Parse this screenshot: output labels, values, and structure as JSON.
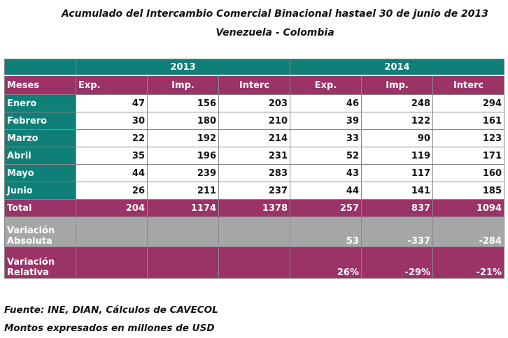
{
  "title": "Acumulado del Intercambio Comercial Binacional hastael  30 de junio de 2013",
  "subtitle": "Venezuela - Colombia",
  "table": {
    "years": [
      "2013",
      "2014"
    ],
    "headers": [
      "Meses",
      "Exp.",
      "Imp.",
      "Interc",
      "Exp.",
      "Imp.",
      "Interc"
    ],
    "rows": [
      {
        "label": "Enero",
        "values": [
          "47",
          "156",
          "203",
          "46",
          "248",
          "294"
        ]
      },
      {
        "label": "Febrero",
        "values": [
          "30",
          "180",
          "210",
          "39",
          "122",
          "161"
        ]
      },
      {
        "label": "Marzo",
        "values": [
          "22",
          "192",
          "214",
          "33",
          "90",
          "123"
        ]
      },
      {
        "label": "Abril",
        "values": [
          "35",
          "196",
          "231",
          "52",
          "119",
          "171"
        ]
      },
      {
        "label": "Mayo",
        "values": [
          "44",
          "239",
          "283",
          "43",
          "117",
          "160"
        ]
      },
      {
        "label": "Junio",
        "values": [
          "26",
          "211",
          "237",
          "44",
          "141",
          "185"
        ]
      }
    ],
    "total": {
      "label": "Total",
      "values": [
        "204",
        "1174",
        "1378",
        "257",
        "837",
        "1094"
      ]
    },
    "variacion_absoluta": {
      "label_line1": "Variación",
      "label_line2": "Absoluta",
      "values": [
        "",
        "",
        "",
        "53",
        "-337",
        "-284"
      ]
    },
    "variacion_relativa": {
      "label_line1": "Variación",
      "label_line2": "Relativa",
      "values": [
        "",
        "",
        "",
        "26%",
        "-29%",
        "-21%"
      ]
    }
  },
  "notes": {
    "source": "Fuente: INE, DIAN, Cálculos de CAVECOL",
    "units": "Montos expresados en millones de USD"
  },
  "colors": {
    "teal": "#0e8077",
    "purple": "#9b3366",
    "grey": "#a6a6a6"
  }
}
